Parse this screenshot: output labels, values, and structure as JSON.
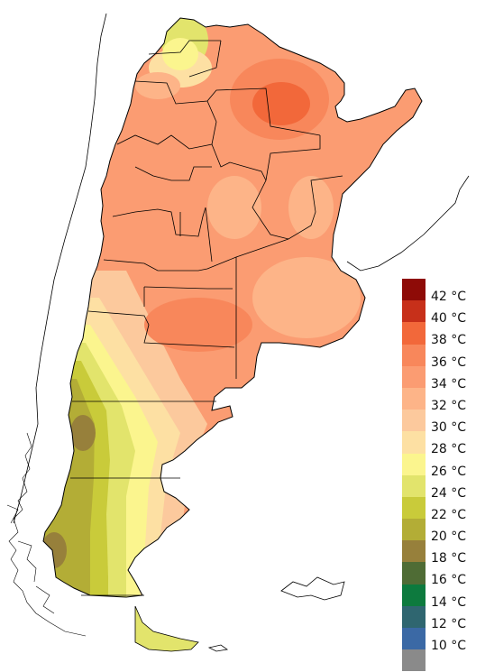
{
  "map": {
    "legend": {
      "items": [
        {
          "label": "42 °C",
          "color": "#8e0b07"
        },
        {
          "label": "40 °C",
          "color": "#c7301a"
        },
        {
          "label": "38 °C",
          "color": "#f2683a"
        },
        {
          "label": "36 °C",
          "color": "#f8875b"
        },
        {
          "label": "34 °C",
          "color": "#fb9c72"
        },
        {
          "label": "32 °C",
          "color": "#fdb488"
        },
        {
          "label": "30 °C",
          "color": "#fcc99d"
        },
        {
          "label": "28 °C",
          "color": "#fde0a3"
        },
        {
          "label": "26 °C",
          "color": "#fbf58e"
        },
        {
          "label": "24 °C",
          "color": "#e2e46c"
        },
        {
          "label": "22 °C",
          "color": "#c9cb3a"
        },
        {
          "label": "20 °C",
          "color": "#b3ad36"
        },
        {
          "label": "18 °C",
          "color": "#97803b"
        },
        {
          "label": "16 °C",
          "color": "#4f6c35"
        },
        {
          "label": "14 °C",
          "color": "#0d7a3e"
        },
        {
          "label": "12 °C",
          "color": "#2f6670"
        },
        {
          "label": "10 °C",
          "color": "#3b69a5"
        },
        {
          "label": "",
          "color": "#8a8a8a"
        }
      ]
    }
  }
}
